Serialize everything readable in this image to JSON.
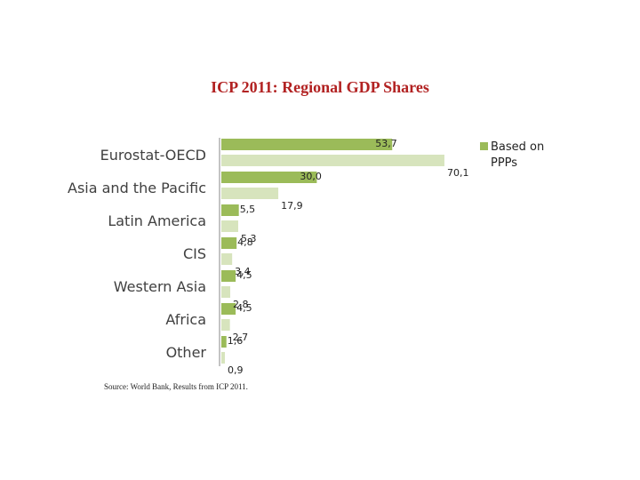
{
  "chart_data": {
    "type": "bar",
    "orientation": "horizontal",
    "title": "ICP 2011: Regional GDP Shares",
    "categories": [
      "Eurostat-OECD",
      "Asia and the Pacific",
      "Latin America",
      "CIS",
      "Western Asia",
      "Africa",
      "Other"
    ],
    "series": [
      {
        "name": "Based on PPPs",
        "values": [
          53.7,
          30.0,
          5.5,
          4.8,
          4.5,
          4.5,
          1.6
        ],
        "labels": [
          "53,7",
          "30,0",
          "5,5",
          "4,8",
          "4,5",
          "4,5",
          "1,6"
        ],
        "color": "#9bbb59"
      },
      {
        "name": "",
        "values": [
          70.1,
          17.9,
          5.3,
          3.4,
          2.8,
          2.7,
          0.9
        ],
        "labels": [
          "70,1",
          "17,9",
          "5,3",
          "3,4",
          "2,8",
          "2,7",
          "0,9"
        ],
        "color": "#d7e4bd"
      }
    ],
    "legend": {
      "entries": [
        "Based on PPPs"
      ],
      "position": "right"
    },
    "xlim": [
      0,
      100
    ],
    "grid": false
  },
  "source": "Source: World Bank, Results from ICP 2011."
}
